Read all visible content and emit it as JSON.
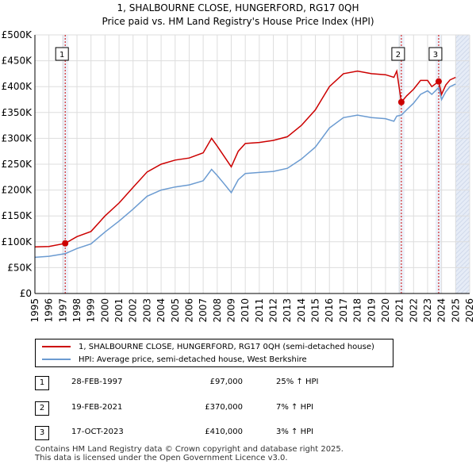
{
  "title_line1": "1, SHALBOURNE CLOSE, HUNGERFORD, RG17 0QH",
  "title_line2": "Price paid vs. HM Land Registry's House Price Index (HPI)",
  "chart_data": {
    "type": "line",
    "xlim": [
      1995,
      2026
    ],
    "ylim": [
      0,
      500000
    ],
    "x_ticks": [
      1995,
      1996,
      1997,
      1998,
      1999,
      2000,
      2001,
      2002,
      2003,
      2004,
      2005,
      2006,
      2007,
      2008,
      2009,
      2010,
      2011,
      2012,
      2013,
      2014,
      2015,
      2016,
      2017,
      2018,
      2019,
      2020,
      2021,
      2022,
      2023,
      2024,
      2025,
      2026
    ],
    "y_ticks": [
      {
        "value": 0,
        "label": "£0"
      },
      {
        "value": 50000,
        "label": "£50K"
      },
      {
        "value": 100000,
        "label": "£100K"
      },
      {
        "value": 150000,
        "label": "£150K"
      },
      {
        "value": 200000,
        "label": "£200K"
      },
      {
        "value": 250000,
        "label": "£250K"
      },
      {
        "value": 300000,
        "label": "£300K"
      },
      {
        "value": 350000,
        "label": "£350K"
      },
      {
        "value": 400000,
        "label": "£400K"
      },
      {
        "value": 450000,
        "label": "£450K"
      },
      {
        "value": 500000,
        "label": "£500K"
      }
    ],
    "shaded_future_from": 2025.0,
    "series": [
      {
        "name": "1, SHALBOURNE CLOSE, HUNGERFORD, RG17 0QH (semi-detached house)",
        "color": "#cc0000",
        "x": [
          1995.0,
          1996.0,
          1997.16,
          1998.0,
          1999.0,
          2000.0,
          2001.0,
          2002.0,
          2003.0,
          2004.0,
          2005.0,
          2006.0,
          2007.0,
          2007.6,
          2008.0,
          2008.5,
          2009.0,
          2009.5,
          2010.0,
          2011.0,
          2012.0,
          2013.0,
          2014.0,
          2015.0,
          2016.0,
          2017.0,
          2018.0,
          2019.0,
          2020.0,
          2020.6,
          2020.8,
          2021.13,
          2021.5,
          2022.0,
          2022.5,
          2023.0,
          2023.3,
          2023.79,
          2024.0,
          2024.3,
          2024.6,
          2025.0
        ],
        "y": [
          90000,
          91000,
          97000,
          110000,
          120000,
          150000,
          175000,
          205000,
          235000,
          250000,
          258000,
          262000,
          272000,
          300000,
          285000,
          265000,
          245000,
          275000,
          290000,
          292000,
          296000,
          303000,
          325000,
          355000,
          400000,
          425000,
          430000,
          425000,
          423000,
          418000,
          430000,
          370000,
          382000,
          395000,
          412000,
          412000,
          400000,
          410000,
          385000,
          403000,
          413000,
          418000
        ]
      },
      {
        "name": "HPI: Average price, semi-detached house, West Berkshire",
        "color": "#6b9bd1",
        "x": [
          1995.0,
          1996.0,
          1997.16,
          1998.0,
          1999.0,
          2000.0,
          2001.0,
          2002.0,
          2003.0,
          2004.0,
          2005.0,
          2006.0,
          2007.0,
          2007.6,
          2008.0,
          2008.5,
          2009.0,
          2009.5,
          2010.0,
          2011.0,
          2012.0,
          2013.0,
          2014.0,
          2015.0,
          2016.0,
          2017.0,
          2018.0,
          2019.0,
          2020.0,
          2020.6,
          2020.8,
          2021.13,
          2021.5,
          2022.0,
          2022.5,
          2023.0,
          2023.3,
          2023.79,
          2024.0,
          2024.3,
          2024.6,
          2025.0
        ],
        "y": [
          70000,
          72000,
          77000,
          87000,
          96000,
          119000,
          140000,
          163000,
          188000,
          200000,
          206000,
          210000,
          218000,
          240000,
          228000,
          212000,
          195000,
          220000,
          232000,
          234000,
          236000,
          242000,
          260000,
          283000,
          320000,
          340000,
          345000,
          340000,
          338000,
          333000,
          343000,
          345000,
          355000,
          368000,
          385000,
          392000,
          385000,
          398000,
          375000,
          390000,
          400000,
          405000
        ]
      }
    ],
    "sales": [
      {
        "label": "1",
        "x": 1997.16,
        "y": 97000
      },
      {
        "label": "2",
        "x": 2021.13,
        "y": 370000
      },
      {
        "label": "3",
        "x": 2023.79,
        "y": 410000
      }
    ]
  },
  "legend": {
    "item1": "1, SHALBOURNE CLOSE, HUNGERFORD, RG17 0QH (semi-detached house)",
    "item2": "HPI: Average price, semi-detached house, West Berkshire"
  },
  "transactions": [
    {
      "num": "1",
      "date": "28-FEB-1997",
      "price": "£97,000",
      "hpi": "25% ↑ HPI"
    },
    {
      "num": "2",
      "date": "19-FEB-2021",
      "price": "£370,000",
      "hpi": "7% ↑ HPI"
    },
    {
      "num": "3",
      "date": "17-OCT-2023",
      "price": "£410,000",
      "hpi": "3% ↑ HPI"
    }
  ],
  "footer_line1": "Contains HM Land Registry data © Crown copyright and database right 2025.",
  "footer_line2": "This data is licensed under the Open Government Licence v3.0."
}
